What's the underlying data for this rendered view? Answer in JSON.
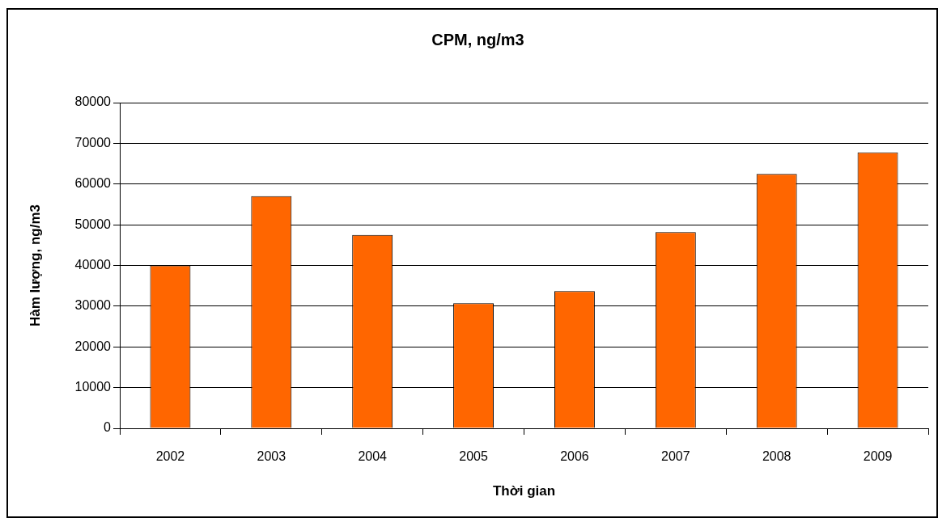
{
  "chart_data": {
    "type": "bar",
    "title": "CPM, ng/m3",
    "xlabel": "Thời gian",
    "ylabel": "Hàm lượng, ng/m3",
    "categories": [
      "2002",
      "2003",
      "2004",
      "2005",
      "2006",
      "2007",
      "2008",
      "2009"
    ],
    "values": [
      40000,
      57000,
      47500,
      30700,
      33700,
      48200,
      62500,
      67800
    ],
    "color": "#ff6600",
    "ylim": [
      0,
      80000
    ],
    "yticks": [
      0,
      10000,
      20000,
      30000,
      40000,
      50000,
      60000,
      70000,
      80000
    ],
    "grid": "y"
  }
}
